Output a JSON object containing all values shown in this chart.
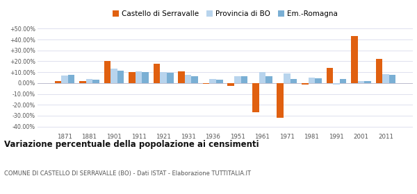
{
  "years": [
    1871,
    1881,
    1901,
    1911,
    1921,
    1931,
    1936,
    1951,
    1961,
    1971,
    1981,
    1991,
    2001,
    2011
  ],
  "castello": [
    2.0,
    1.5,
    20.0,
    10.0,
    17.5,
    10.5,
    -1.0,
    -2.5,
    -27.0,
    -32.0,
    -1.5,
    14.0,
    43.0,
    22.0
  ],
  "provincia": [
    7.0,
    3.5,
    13.0,
    10.5,
    10.0,
    7.5,
    3.5,
    6.0,
    10.0,
    9.0,
    5.0,
    -1.5,
    2.0,
    8.0
  ],
  "emromagna": [
    7.5,
    3.0,
    11.5,
    10.0,
    9.5,
    6.0,
    3.0,
    6.5,
    6.0,
    4.0,
    4.5,
    3.5,
    2.0,
    7.5
  ],
  "color_castello": "#e06010",
  "color_provincia": "#b8d4ed",
  "color_emromagna": "#7aafd4",
  "title": "Variazione percentuale della popolazione ai censimenti",
  "subtitle": "COMUNE DI CASTELLO DI SERRAVALLE (BO) - Dati ISTAT - Elaborazione TUTTITALIA.IT",
  "legend_labels": [
    "Castello di Serravalle",
    "Provincia di BO",
    "Em.-Romagna"
  ],
  "ylim": [
    -45,
    55
  ],
  "yticks": [
    -40,
    -30,
    -20,
    -10,
    0,
    10,
    20,
    30,
    40,
    50
  ],
  "ytick_labels": [
    "-40.00%",
    "-30.00%",
    "-20.00%",
    "-10.00%",
    "0.00%",
    "+10.00%",
    "+20.00%",
    "+30.00%",
    "+40.00%",
    "+50.00%"
  ],
  "background_color": "#ffffff",
  "grid_color": "#dde0ee"
}
